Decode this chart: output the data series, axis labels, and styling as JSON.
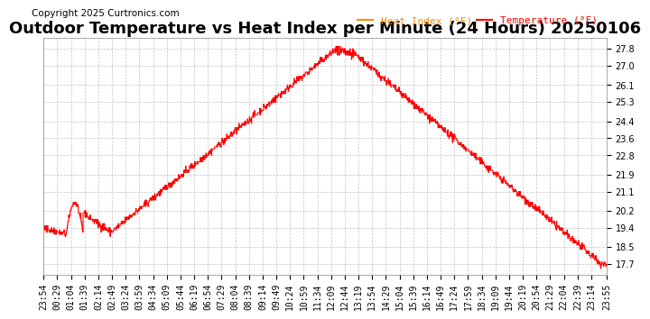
{
  "title": "Outdoor Temperature vs Heat Index per Minute (24 Hours) 20250106",
  "copyright": "Copyright 2025 Curtronics.com",
  "legend_heat": "Heat Index (°F)",
  "legend_temp": "Temperature (°F)",
  "legend_heat_color": "#ff8c00",
  "legend_temp_color": "#ff0000",
  "line_color": "#ff0000",
  "background_color": "#ffffff",
  "grid_color": "#aaaaaa",
  "yticks": [
    17.7,
    18.5,
    19.4,
    20.2,
    21.1,
    21.9,
    22.8,
    23.6,
    24.4,
    25.3,
    26.1,
    27.0,
    27.8
  ],
  "ylim": [
    17.2,
    28.3
  ],
  "title_fontsize": 13,
  "tick_fontsize": 7,
  "copyright_fontsize": 7.5,
  "legend_fontsize": 8
}
